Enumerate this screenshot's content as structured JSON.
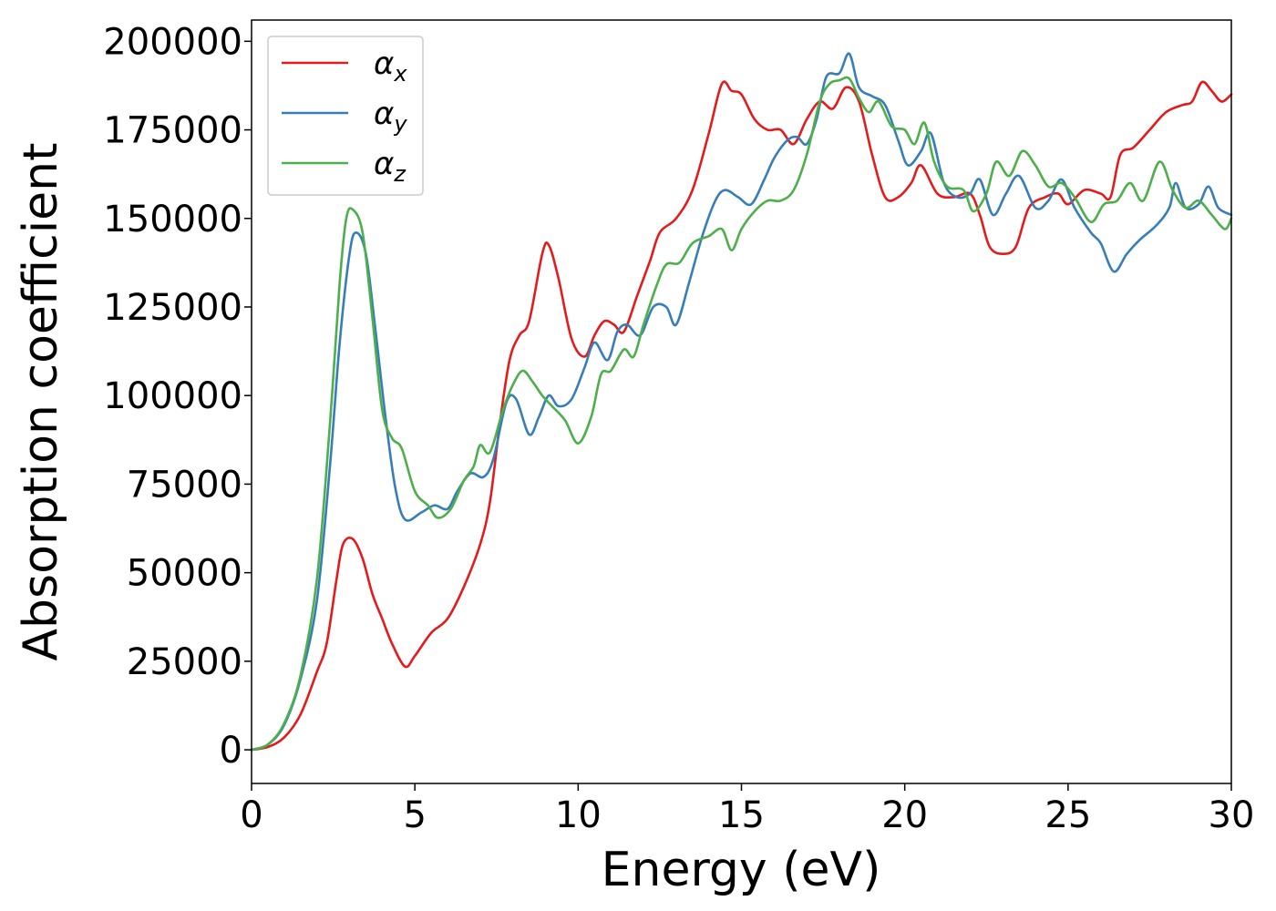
{
  "chart_data": {
    "type": "line",
    "title": "",
    "xlabel": "Energy (eV)",
    "ylabel": "Absorption coefficient",
    "xlim": [
      0,
      30
    ],
    "ylim": [
      -9500,
      206000
    ],
    "x_ticks": [
      0,
      5,
      10,
      15,
      20,
      25,
      30
    ],
    "x_tick_labels": [
      "0",
      "5",
      "10",
      "15",
      "20",
      "25",
      "30"
    ],
    "y_ticks": [
      0,
      25000,
      50000,
      75000,
      100000,
      125000,
      150000,
      175000,
      200000
    ],
    "y_tick_labels": [
      "0",
      "25000",
      "50000",
      "75000",
      "100000",
      "125000",
      "150000",
      "175000",
      "200000"
    ],
    "grid": false,
    "legend_position": "top-left",
    "series": [
      {
        "name": "α",
        "subscript": "x",
        "color": "#e41a1c",
        "points": [
          [
            0,
            0
          ],
          [
            0.5,
            800
          ],
          [
            1,
            3500
          ],
          [
            1.5,
            10000
          ],
          [
            2,
            22000
          ],
          [
            2.3,
            30000
          ],
          [
            2.6,
            48000
          ],
          [
            2.8,
            58000
          ],
          [
            3.1,
            59500
          ],
          [
            3.4,
            54000
          ],
          [
            3.7,
            44000
          ],
          [
            4,
            37000
          ],
          [
            4.3,
            30000
          ],
          [
            4.7,
            23500
          ],
          [
            5,
            26500
          ],
          [
            5.5,
            33000
          ],
          [
            6,
            37000
          ],
          [
            6.5,
            46000
          ],
          [
            7,
            58000
          ],
          [
            7.3,
            70000
          ],
          [
            7.6,
            92000
          ],
          [
            7.9,
            110000
          ],
          [
            8.2,
            117000
          ],
          [
            8.5,
            121000
          ],
          [
            8.9,
            140000
          ],
          [
            9.1,
            142500
          ],
          [
            9.4,
            133000
          ],
          [
            9.8,
            116000
          ],
          [
            10.2,
            111000
          ],
          [
            10.5,
            117000
          ],
          [
            10.8,
            121000
          ],
          [
            11.1,
            120000
          ],
          [
            11.4,
            118000
          ],
          [
            11.8,
            128000
          ],
          [
            12.2,
            138000
          ],
          [
            12.5,
            146000
          ],
          [
            13,
            150000
          ],
          [
            13.5,
            158000
          ],
          [
            14,
            174000
          ],
          [
            14.4,
            188000
          ],
          [
            14.7,
            186000
          ],
          [
            15,
            185000
          ],
          [
            15.4,
            178000
          ],
          [
            15.8,
            175000
          ],
          [
            16.2,
            175000
          ],
          [
            16.6,
            171000
          ],
          [
            17,
            178000
          ],
          [
            17.4,
            183000
          ],
          [
            17.8,
            181000
          ],
          [
            18.2,
            187000
          ],
          [
            18.6,
            183000
          ],
          [
            19,
            168000
          ],
          [
            19.4,
            156000
          ],
          [
            19.8,
            156000
          ],
          [
            20.2,
            160000
          ],
          [
            20.5,
            165000
          ],
          [
            21,
            157000
          ],
          [
            21.5,
            156000
          ],
          [
            22,
            157000
          ],
          [
            22.3,
            151000
          ],
          [
            22.6,
            142000
          ],
          [
            23,
            140000
          ],
          [
            23.4,
            142000
          ],
          [
            23.8,
            153000
          ],
          [
            24.3,
            156000
          ],
          [
            24.7,
            157000
          ],
          [
            25,
            154000
          ],
          [
            25.5,
            158000
          ],
          [
            26,
            157000
          ],
          [
            26.3,
            156000
          ],
          [
            26.6,
            168000
          ],
          [
            27,
            170000
          ],
          [
            27.5,
            175000
          ],
          [
            28,
            180000
          ],
          [
            28.5,
            182000
          ],
          [
            28.8,
            183000
          ],
          [
            29.1,
            188500
          ],
          [
            29.4,
            186000
          ],
          [
            29.7,
            183000
          ],
          [
            30,
            185000
          ]
        ]
      },
      {
        "name": "α",
        "subscript": "y",
        "color": "#377eb8",
        "points": [
          [
            0,
            0
          ],
          [
            0.5,
            1500
          ],
          [
            1,
            7000
          ],
          [
            1.5,
            20000
          ],
          [
            2,
            42000
          ],
          [
            2.4,
            80000
          ],
          [
            2.7,
            115000
          ],
          [
            3,
            140000
          ],
          [
            3.2,
            146000
          ],
          [
            3.5,
            140000
          ],
          [
            3.8,
            118000
          ],
          [
            4.1,
            94000
          ],
          [
            4.4,
            74000
          ],
          [
            4.7,
            65000
          ],
          [
            5.2,
            67000
          ],
          [
            5.6,
            69000
          ],
          [
            6,
            68000
          ],
          [
            6.3,
            73000
          ],
          [
            6.7,
            78000
          ],
          [
            7.1,
            77000
          ],
          [
            7.4,
            82000
          ],
          [
            7.8,
            98000
          ],
          [
            8.1,
            99000
          ],
          [
            8.5,
            89000
          ],
          [
            8.8,
            94000
          ],
          [
            9.1,
            100000
          ],
          [
            9.4,
            97000
          ],
          [
            9.8,
            99000
          ],
          [
            10.2,
            108000
          ],
          [
            10.5,
            115000
          ],
          [
            10.9,
            110000
          ],
          [
            11.2,
            118000
          ],
          [
            11.5,
            120000
          ],
          [
            11.9,
            117000
          ],
          [
            12.3,
            125000
          ],
          [
            12.7,
            125000
          ],
          [
            13,
            120000
          ],
          [
            13.4,
            132000
          ],
          [
            13.8,
            145000
          ],
          [
            14.2,
            155000
          ],
          [
            14.5,
            158000
          ],
          [
            14.9,
            156000
          ],
          [
            15.3,
            154000
          ],
          [
            15.7,
            161000
          ],
          [
            16,
            167000
          ],
          [
            16.4,
            172000
          ],
          [
            16.7,
            173000
          ],
          [
            17,
            171000
          ],
          [
            17.3,
            178000
          ],
          [
            17.6,
            190000
          ],
          [
            18,
            191000
          ],
          [
            18.3,
            196500
          ],
          [
            18.6,
            187000
          ],
          [
            19,
            184500
          ],
          [
            19.4,
            182000
          ],
          [
            19.8,
            172000
          ],
          [
            20.1,
            165000
          ],
          [
            20.5,
            169000
          ],
          [
            20.8,
            174000
          ],
          [
            21.2,
            160000
          ],
          [
            21.6,
            156000
          ],
          [
            22,
            157000
          ],
          [
            22.3,
            161000
          ],
          [
            22.7,
            151000
          ],
          [
            23.1,
            157000
          ],
          [
            23.5,
            162000
          ],
          [
            24,
            153000
          ],
          [
            24.4,
            155000
          ],
          [
            24.8,
            161000
          ],
          [
            25.2,
            153000
          ],
          [
            25.7,
            146000
          ],
          [
            26,
            143000
          ],
          [
            26.4,
            135000
          ],
          [
            26.8,
            140000
          ],
          [
            27.2,
            144000
          ],
          [
            27.7,
            148000
          ],
          [
            28.1,
            153000
          ],
          [
            28.3,
            160000
          ],
          [
            28.6,
            153000
          ],
          [
            29,
            154000
          ],
          [
            29.3,
            159000
          ],
          [
            29.6,
            153000
          ],
          [
            30,
            151000
          ]
        ]
      },
      {
        "name": "α",
        "subscript": "z",
        "color": "#4daf4a",
        "points": [
          [
            0,
            0
          ],
          [
            0.5,
            1500
          ],
          [
            1,
            7500
          ],
          [
            1.5,
            21000
          ],
          [
            2,
            48000
          ],
          [
            2.4,
            92000
          ],
          [
            2.7,
            132000
          ],
          [
            2.9,
            150000
          ],
          [
            3.1,
            152500
          ],
          [
            3.4,
            146000
          ],
          [
            3.7,
            122000
          ],
          [
            4,
            96000
          ],
          [
            4.3,
            88000
          ],
          [
            4.6,
            85000
          ],
          [
            5,
            73000
          ],
          [
            5.4,
            69000
          ],
          [
            5.7,
            65500
          ],
          [
            6.1,
            68000
          ],
          [
            6.5,
            76000
          ],
          [
            6.8,
            80000
          ],
          [
            7,
            86000
          ],
          [
            7.3,
            84000
          ],
          [
            7.7,
            96000
          ],
          [
            8,
            103000
          ],
          [
            8.3,
            107000
          ],
          [
            8.6,
            104000
          ],
          [
            8.9,
            100000
          ],
          [
            9.2,
            97000
          ],
          [
            9.6,
            93000
          ],
          [
            10,
            86500
          ],
          [
            10.4,
            94000
          ],
          [
            10.7,
            106000
          ],
          [
            11,
            107000
          ],
          [
            11.4,
            113000
          ],
          [
            11.7,
            111000
          ],
          [
            12,
            120000
          ],
          [
            12.4,
            131000
          ],
          [
            12.7,
            137000
          ],
          [
            13.1,
            137500
          ],
          [
            13.5,
            143000
          ],
          [
            14,
            145000
          ],
          [
            14.4,
            147000
          ],
          [
            14.7,
            141000
          ],
          [
            15,
            147000
          ],
          [
            15.4,
            152000
          ],
          [
            15.8,
            155000
          ],
          [
            16.2,
            155000
          ],
          [
            16.6,
            158000
          ],
          [
            17,
            168000
          ],
          [
            17.4,
            183000
          ],
          [
            17.7,
            188000
          ],
          [
            18,
            189000
          ],
          [
            18.3,
            189500
          ],
          [
            18.6,
            184000
          ],
          [
            18.9,
            180000
          ],
          [
            19.2,
            183000
          ],
          [
            19.6,
            176000
          ],
          [
            20,
            175000
          ],
          [
            20.3,
            171000
          ],
          [
            20.6,
            177000
          ],
          [
            20.9,
            166000
          ],
          [
            21.3,
            159000
          ],
          [
            21.8,
            158000
          ],
          [
            22.1,
            152000
          ],
          [
            22.5,
            157000
          ],
          [
            22.8,
            166000
          ],
          [
            23.2,
            162000
          ],
          [
            23.6,
            169000
          ],
          [
            24,
            165000
          ],
          [
            24.4,
            159000
          ],
          [
            24.8,
            160000
          ],
          [
            25.2,
            156000
          ],
          [
            25.7,
            149000
          ],
          [
            26.1,
            154000
          ],
          [
            26.5,
            155000
          ],
          [
            26.9,
            160000
          ],
          [
            27.3,
            155000
          ],
          [
            27.8,
            166000
          ],
          [
            28.2,
            158000
          ],
          [
            28.6,
            153000
          ],
          [
            29,
            155000
          ],
          [
            29.4,
            151000
          ],
          [
            29.8,
            147000
          ],
          [
            30,
            150000
          ]
        ]
      }
    ]
  }
}
